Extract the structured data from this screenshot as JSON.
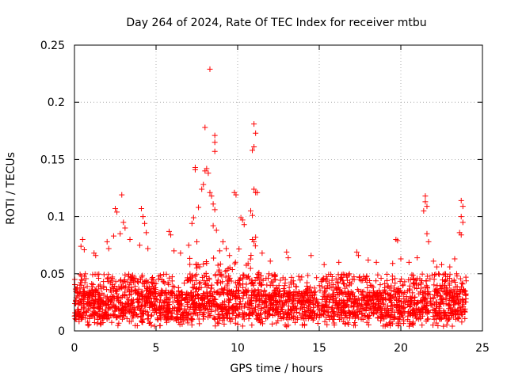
{
  "chart_data": {
    "type": "scatter",
    "title": "Day 264 of 2024, Rate Of TEC Index for receiver mtbu",
    "xlabel": "GPS time / hours",
    "ylabel": "ROTI / TECUs",
    "xlim": [
      0,
      25
    ],
    "ylim": [
      0,
      0.25
    ],
    "xticks": [
      0,
      5,
      10,
      15,
      20,
      25
    ],
    "xtick_labels": [
      "0",
      "5",
      "10",
      "15",
      "20",
      "25"
    ],
    "yticks": [
      0,
      0.05,
      0.1,
      0.15,
      0.2,
      0.25
    ],
    "ytick_labels": [
      "0",
      "0.05",
      "0.1",
      "0.15",
      "0.2",
      "0.25"
    ],
    "grid": true,
    "marker": "+",
    "color": "#ff0000",
    "series": [
      {
        "name": "ROTI",
        "points": [
          [
            8.3,
            0.229
          ],
          [
            8.0,
            0.178
          ],
          [
            8.6,
            0.171
          ],
          [
            8.6,
            0.165
          ],
          [
            8.6,
            0.157
          ],
          [
            11.0,
            0.181
          ],
          [
            11.1,
            0.173
          ],
          [
            11.0,
            0.161
          ],
          [
            10.9,
            0.158
          ],
          [
            7.4,
            0.143
          ],
          [
            7.4,
            0.141
          ],
          [
            8.1,
            0.142
          ],
          [
            8.0,
            0.14
          ],
          [
            8.2,
            0.138
          ],
          [
            7.9,
            0.128
          ],
          [
            7.8,
            0.124
          ],
          [
            8.3,
            0.121
          ],
          [
            8.4,
            0.118
          ],
          [
            9.8,
            0.121
          ],
          [
            9.9,
            0.119
          ],
          [
            11.0,
            0.124
          ],
          [
            11.1,
            0.121
          ],
          [
            11.2,
            0.121
          ],
          [
            8.5,
            0.111
          ],
          [
            8.6,
            0.106
          ],
          [
            7.6,
            0.108
          ],
          [
            7.3,
            0.099
          ],
          [
            7.2,
            0.094
          ],
          [
            10.2,
            0.099
          ],
          [
            10.3,
            0.097
          ],
          [
            10.4,
            0.093
          ],
          [
            10.8,
            0.105
          ],
          [
            10.9,
            0.101
          ],
          [
            10.9,
            0.08
          ],
          [
            11.0,
            0.078
          ],
          [
            11.1,
            0.082
          ],
          [
            2.9,
            0.119
          ],
          [
            2.5,
            0.107
          ],
          [
            2.6,
            0.104
          ],
          [
            3.0,
            0.095
          ],
          [
            3.1,
            0.09
          ],
          [
            4.1,
            0.107
          ],
          [
            4.2,
            0.1
          ],
          [
            4.3,
            0.094
          ],
          [
            4.4,
            0.086
          ],
          [
            5.8,
            0.087
          ],
          [
            5.9,
            0.084
          ],
          [
            8.5,
            0.092
          ],
          [
            8.7,
            0.088
          ],
          [
            21.5,
            0.118
          ],
          [
            21.5,
            0.113
          ],
          [
            21.6,
            0.109
          ],
          [
            21.4,
            0.105
          ],
          [
            23.7,
            0.114
          ],
          [
            23.8,
            0.109
          ],
          [
            23.7,
            0.1
          ],
          [
            23.8,
            0.095
          ],
          [
            23.6,
            0.086
          ],
          [
            23.7,
            0.084
          ],
          [
            21.6,
            0.085
          ],
          [
            21.7,
            0.078
          ],
          [
            19.7,
            0.08
          ],
          [
            19.8,
            0.079
          ],
          [
            0.5,
            0.08
          ],
          [
            0.4,
            0.074
          ],
          [
            0.6,
            0.071
          ],
          [
            1.2,
            0.068
          ],
          [
            1.3,
            0.066
          ],
          [
            2.0,
            0.078
          ],
          [
            2.1,
            0.072
          ],
          [
            2.8,
            0.085
          ],
          [
            2.4,
            0.083
          ],
          [
            3.4,
            0.08
          ],
          [
            4.0,
            0.075
          ],
          [
            4.5,
            0.072
          ],
          [
            6.1,
            0.07
          ],
          [
            6.5,
            0.068
          ],
          [
            7.0,
            0.075
          ],
          [
            7.5,
            0.078
          ],
          [
            9.1,
            0.078
          ],
          [
            9.3,
            0.072
          ],
          [
            8.9,
            0.07
          ],
          [
            9.5,
            0.066
          ],
          [
            11.5,
            0.068
          ],
          [
            12.0,
            0.061
          ],
          [
            13.0,
            0.069
          ],
          [
            13.1,
            0.064
          ],
          [
            14.5,
            0.066
          ],
          [
            17.3,
            0.069
          ],
          [
            17.4,
            0.066
          ],
          [
            18.0,
            0.062
          ],
          [
            18.5,
            0.06
          ],
          [
            19.5,
            0.059
          ],
          [
            20.0,
            0.063
          ],
          [
            20.5,
            0.06
          ],
          [
            21.0,
            0.064
          ],
          [
            22.0,
            0.061
          ],
          [
            22.5,
            0.058
          ],
          [
            23.0,
            0.056
          ],
          [
            23.3,
            0.063
          ],
          [
            22.2,
            0.056
          ],
          [
            16.2,
            0.06
          ],
          [
            15.3,
            0.058
          ]
        ],
        "dense_band": {
          "description": "continuous dense cloud of points",
          "x_range": [
            0,
            24
          ],
          "core_y_range": [
            0.01,
            0.035
          ],
          "max_y_typical": 0.05
        }
      }
    ]
  }
}
